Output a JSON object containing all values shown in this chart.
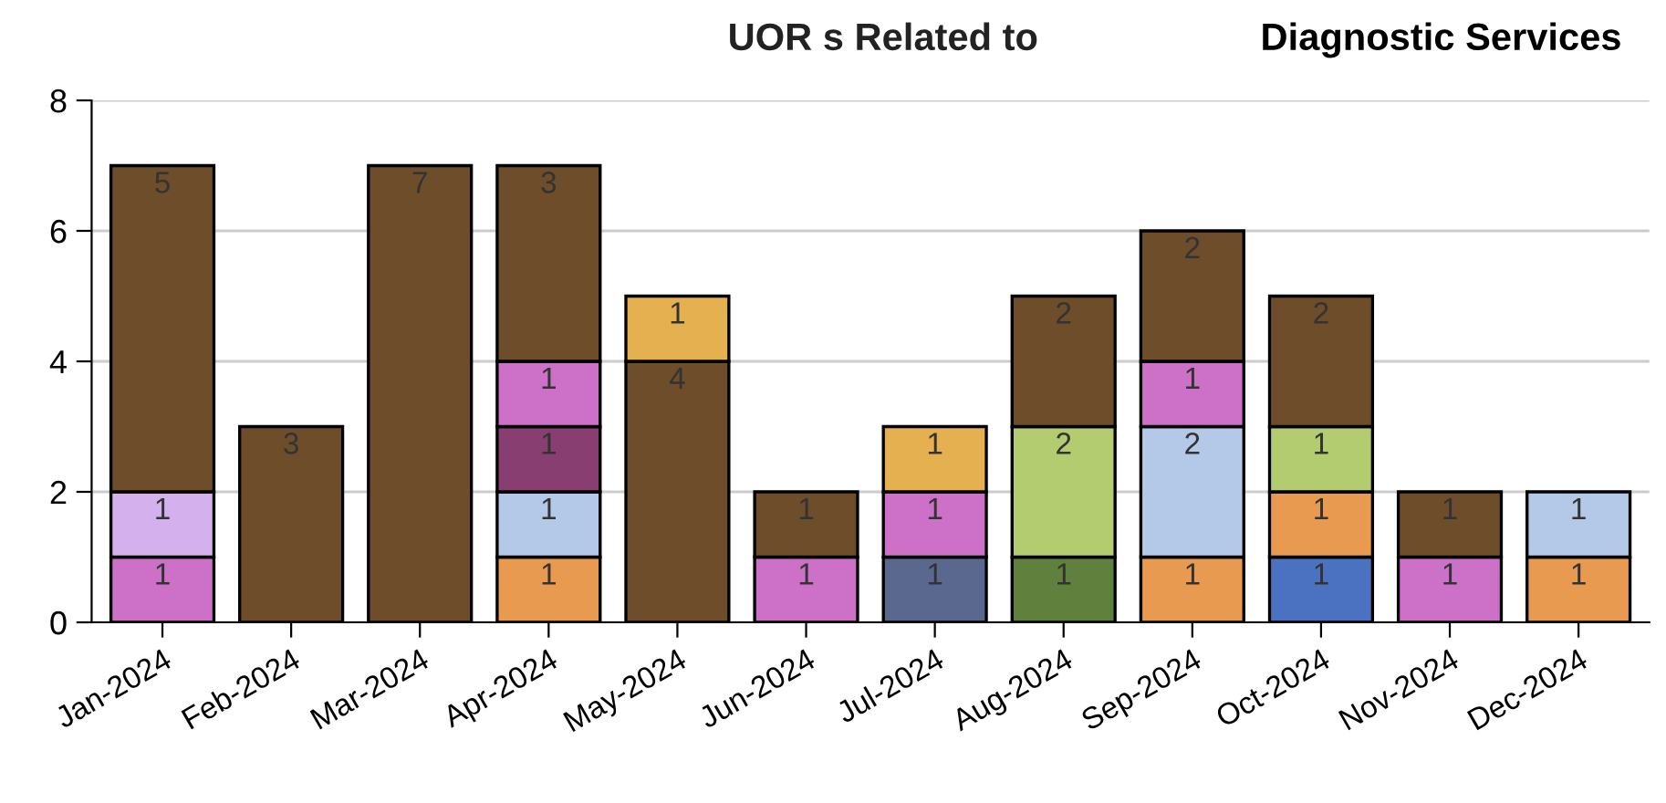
{
  "chart_data": {
    "type": "bar",
    "title": "UOR s Related to",
    "subtitle": "Diagnostic Services",
    "categories": [
      "Jan-2024",
      "Feb-2024",
      "Mar-2024",
      "Apr-2024",
      "May-2024",
      "Jun-2024",
      "Jul-2024",
      "Aug-2024",
      "Sep-2024",
      "Oct-2024",
      "Nov-2024",
      "Dec-2024"
    ],
    "stacked": true,
    "data_labels": true,
    "grid": "y",
    "legend": false,
    "ylim": [
      0,
      8
    ],
    "yticks": [
      0,
      2,
      4,
      6,
      8
    ],
    "series": [
      {
        "color": "#5a6890",
        "values": [
          null,
          null,
          null,
          null,
          null,
          null,
          1,
          null,
          null,
          null,
          null,
          null
        ]
      },
      {
        "color": "#60803e",
        "values": [
          null,
          null,
          null,
          null,
          null,
          null,
          null,
          1,
          null,
          null,
          null,
          null
        ]
      },
      {
        "color": "#4a72c0",
        "values": [
          null,
          null,
          null,
          null,
          null,
          null,
          null,
          null,
          null,
          1,
          null,
          null
        ]
      },
      {
        "color": "#e89a50",
        "values": [
          null,
          null,
          null,
          1,
          null,
          null,
          null,
          null,
          1,
          1,
          null,
          1
        ]
      },
      {
        "color": "#b4c8e8",
        "values": [
          null,
          null,
          null,
          1,
          null,
          null,
          null,
          null,
          2,
          null,
          null,
          1
        ]
      },
      {
        "color": "#b4cc70",
        "values": [
          null,
          null,
          null,
          null,
          null,
          null,
          null,
          2,
          null,
          1,
          null,
          null
        ]
      },
      {
        "color": "#883e70",
        "values": [
          null,
          null,
          null,
          1,
          null,
          null,
          null,
          null,
          null,
          null,
          null,
          null
        ]
      },
      {
        "color": "#cc70c8",
        "values": [
          1,
          null,
          null,
          1,
          null,
          1,
          1,
          null,
          1,
          null,
          1,
          null
        ]
      },
      {
        "color": "#d4b0ec",
        "values": [
          1,
          null,
          null,
          null,
          null,
          null,
          null,
          null,
          null,
          null,
          null,
          null
        ]
      },
      {
        "color": "#6e4e2a",
        "values": [
          5,
          3,
          7,
          3,
          4,
          1,
          null,
          2,
          2,
          2,
          1,
          null
        ]
      },
      {
        "color": "#e4b050",
        "values": [
          null,
          null,
          null,
          null,
          1,
          null,
          1,
          null,
          null,
          null,
          null,
          null
        ]
      }
    ]
  }
}
